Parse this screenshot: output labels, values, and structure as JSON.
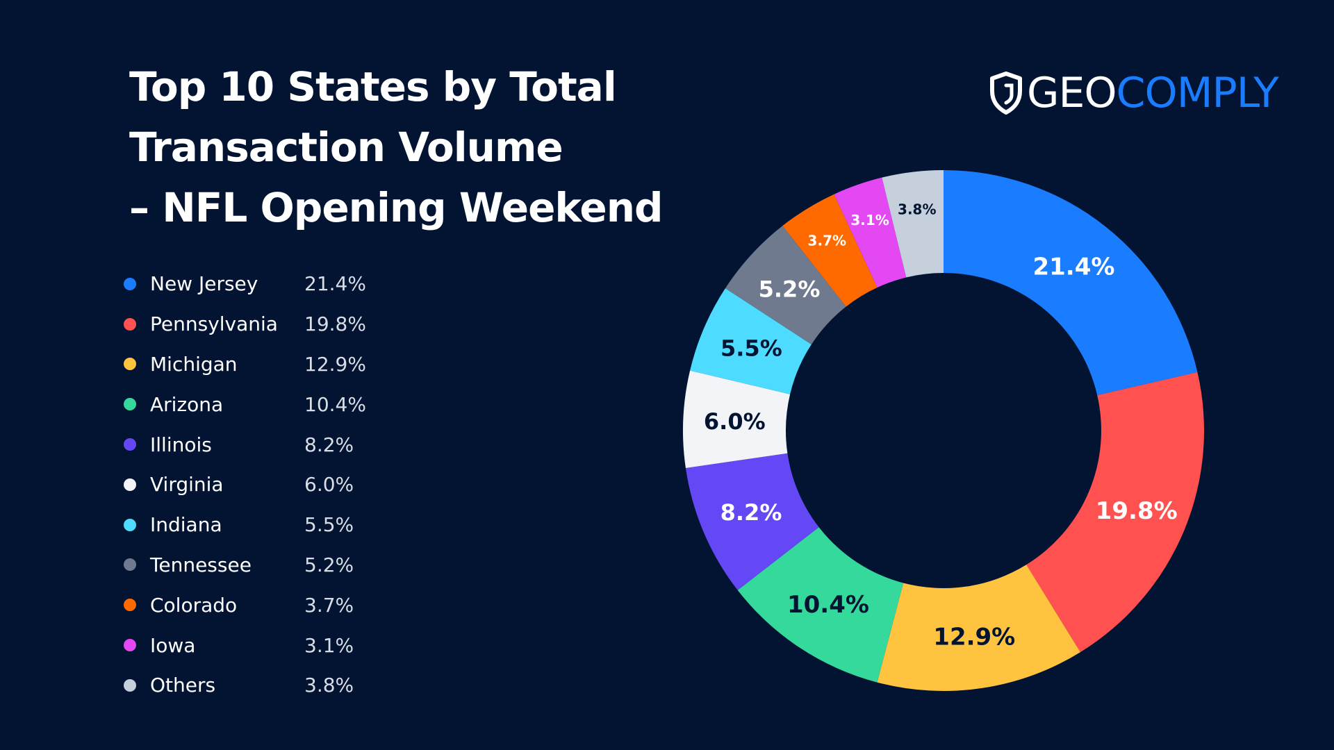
{
  "title_lines": [
    "Top 10 States by Total",
    "Transaction Volume",
    "– NFL Opening Weekend"
  ],
  "logo": {
    "part1": "GEO",
    "part2": "COMPLY",
    "icon": "shield-icon",
    "color_primary": "#ffffff",
    "color_accent": "#1a7dff"
  },
  "background_color": "#031433",
  "chart_data": {
    "type": "pie",
    "title": "Top 10 States by Total Transaction Volume – NFL Opening Weekend",
    "donut": true,
    "legend_position": "left",
    "categories": [
      "New Jersey",
      "Pennsylvania",
      "Michigan",
      "Arizona",
      "Illinois",
      "Virginia",
      "Indiana",
      "Tennessee",
      "Colorado",
      "Iowa",
      "Others"
    ],
    "values": [
      21.4,
      19.8,
      12.9,
      10.4,
      8.2,
      6.0,
      5.5,
      5.2,
      3.7,
      3.1,
      3.8
    ],
    "labels": [
      "21.4%",
      "19.8%",
      "12.9%",
      "10.4%",
      "8.2%",
      "6.0%",
      "5.5%",
      "5.2%",
      "3.7%",
      "3.1%",
      "3.8%"
    ],
    "colors": [
      "#1a7dff",
      "#ff5250",
      "#ffc43f",
      "#35d99c",
      "#6448f5",
      "#f2f4f7",
      "#4ddcff",
      "#6f7a8e",
      "#ff6a00",
      "#e348f2",
      "#c6cfdc"
    ],
    "label_colors": [
      "#ffffff",
      "#ffffff",
      "#031433",
      "#031433",
      "#ffffff",
      "#031433",
      "#031433",
      "#ffffff",
      "#ffffff",
      "#ffffff",
      "#031433"
    ]
  }
}
